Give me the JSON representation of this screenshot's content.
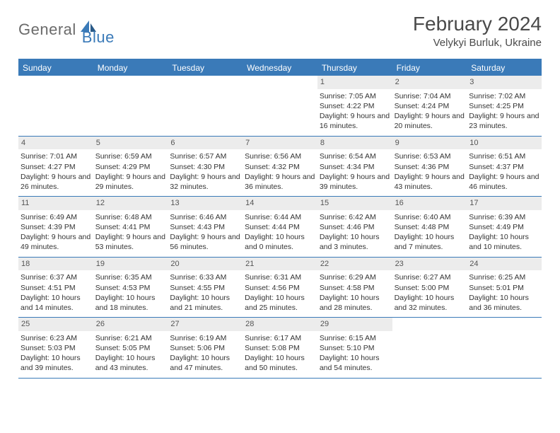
{
  "brand": {
    "part1": "General",
    "part2": "Blue"
  },
  "title": "February 2024",
  "location": "Velykyi Burluk, Ukraine",
  "colors": {
    "accent": "#3a7ab8",
    "header_bg": "#3a7ab8",
    "daynum_bg": "#ececec",
    "text": "#333333",
    "logo_gray": "#6b6b6b"
  },
  "weekdays": [
    "Sunday",
    "Monday",
    "Tuesday",
    "Wednesday",
    "Thursday",
    "Friday",
    "Saturday"
  ],
  "weeks": [
    [
      null,
      null,
      null,
      null,
      {
        "n": "1",
        "sr": "7:05 AM",
        "ss": "4:22 PM",
        "dl": "9 hours and 16 minutes."
      },
      {
        "n": "2",
        "sr": "7:04 AM",
        "ss": "4:24 PM",
        "dl": "9 hours and 20 minutes."
      },
      {
        "n": "3",
        "sr": "7:02 AM",
        "ss": "4:25 PM",
        "dl": "9 hours and 23 minutes."
      }
    ],
    [
      {
        "n": "4",
        "sr": "7:01 AM",
        "ss": "4:27 PM",
        "dl": "9 hours and 26 minutes."
      },
      {
        "n": "5",
        "sr": "6:59 AM",
        "ss": "4:29 PM",
        "dl": "9 hours and 29 minutes."
      },
      {
        "n": "6",
        "sr": "6:57 AM",
        "ss": "4:30 PM",
        "dl": "9 hours and 32 minutes."
      },
      {
        "n": "7",
        "sr": "6:56 AM",
        "ss": "4:32 PM",
        "dl": "9 hours and 36 minutes."
      },
      {
        "n": "8",
        "sr": "6:54 AM",
        "ss": "4:34 PM",
        "dl": "9 hours and 39 minutes."
      },
      {
        "n": "9",
        "sr": "6:53 AM",
        "ss": "4:36 PM",
        "dl": "9 hours and 43 minutes."
      },
      {
        "n": "10",
        "sr": "6:51 AM",
        "ss": "4:37 PM",
        "dl": "9 hours and 46 minutes."
      }
    ],
    [
      {
        "n": "11",
        "sr": "6:49 AM",
        "ss": "4:39 PM",
        "dl": "9 hours and 49 minutes."
      },
      {
        "n": "12",
        "sr": "6:48 AM",
        "ss": "4:41 PM",
        "dl": "9 hours and 53 minutes."
      },
      {
        "n": "13",
        "sr": "6:46 AM",
        "ss": "4:43 PM",
        "dl": "9 hours and 56 minutes."
      },
      {
        "n": "14",
        "sr": "6:44 AM",
        "ss": "4:44 PM",
        "dl": "10 hours and 0 minutes."
      },
      {
        "n": "15",
        "sr": "6:42 AM",
        "ss": "4:46 PM",
        "dl": "10 hours and 3 minutes."
      },
      {
        "n": "16",
        "sr": "6:40 AM",
        "ss": "4:48 PM",
        "dl": "10 hours and 7 minutes."
      },
      {
        "n": "17",
        "sr": "6:39 AM",
        "ss": "4:49 PM",
        "dl": "10 hours and 10 minutes."
      }
    ],
    [
      {
        "n": "18",
        "sr": "6:37 AM",
        "ss": "4:51 PM",
        "dl": "10 hours and 14 minutes."
      },
      {
        "n": "19",
        "sr": "6:35 AM",
        "ss": "4:53 PM",
        "dl": "10 hours and 18 minutes."
      },
      {
        "n": "20",
        "sr": "6:33 AM",
        "ss": "4:55 PM",
        "dl": "10 hours and 21 minutes."
      },
      {
        "n": "21",
        "sr": "6:31 AM",
        "ss": "4:56 PM",
        "dl": "10 hours and 25 minutes."
      },
      {
        "n": "22",
        "sr": "6:29 AM",
        "ss": "4:58 PM",
        "dl": "10 hours and 28 minutes."
      },
      {
        "n": "23",
        "sr": "6:27 AM",
        "ss": "5:00 PM",
        "dl": "10 hours and 32 minutes."
      },
      {
        "n": "24",
        "sr": "6:25 AM",
        "ss": "5:01 PM",
        "dl": "10 hours and 36 minutes."
      }
    ],
    [
      {
        "n": "25",
        "sr": "6:23 AM",
        "ss": "5:03 PM",
        "dl": "10 hours and 39 minutes."
      },
      {
        "n": "26",
        "sr": "6:21 AM",
        "ss": "5:05 PM",
        "dl": "10 hours and 43 minutes."
      },
      {
        "n": "27",
        "sr": "6:19 AM",
        "ss": "5:06 PM",
        "dl": "10 hours and 47 minutes."
      },
      {
        "n": "28",
        "sr": "6:17 AM",
        "ss": "5:08 PM",
        "dl": "10 hours and 50 minutes."
      },
      {
        "n": "29",
        "sr": "6:15 AM",
        "ss": "5:10 PM",
        "dl": "10 hours and 54 minutes."
      },
      null,
      null
    ]
  ],
  "labels": {
    "sunrise": "Sunrise:",
    "sunset": "Sunset:",
    "daylight": "Daylight:"
  }
}
